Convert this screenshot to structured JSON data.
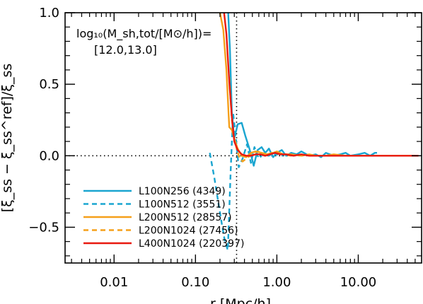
{
  "chart_data": {
    "type": "line",
    "xscale": "log",
    "xlim": [
      0.0025,
      60
    ],
    "ylim": [
      -0.75,
      1.0
    ],
    "x_ticks": [
      {
        "value": 0.01,
        "label": "0.01"
      },
      {
        "value": 0.1,
        "label": "0.10"
      },
      {
        "value": 1,
        "label": "1.00"
      },
      {
        "value": 10,
        "label": "10.00"
      }
    ],
    "y_ticks": [
      {
        "value": 1.0,
        "label": "1.0"
      },
      {
        "value": 0.5,
        "label": "0.5"
      },
      {
        "value": 0.0,
        "label": "0.0"
      },
      {
        "value": -0.5,
        "label": "−0.5"
      }
    ],
    "xlabel": "r [Mpc/h]",
    "ylabel": "[ξ_ss − ξ_ss^ref]/ξ_ss",
    "annotation": {
      "line1": "log₁₀(M_sh,tot/[M⊙/h])=",
      "line2": "[12.0,13.0]"
    },
    "reference_lines": {
      "y": 0.0,
      "x": 0.32
    },
    "legend": "bottom-left",
    "colors": {
      "blue": "#1aa5d0",
      "orange": "#f5a01a",
      "red": "#e8190f"
    },
    "series": [
      {
        "name": "L100N256 (4349)",
        "color": "#1aa5d0",
        "dash": "solid",
        "x": [
          0.25,
          0.265,
          0.28,
          0.3,
          0.33,
          0.37,
          0.41,
          0.46,
          0.52,
          0.58,
          0.65,
          0.72,
          0.8,
          0.9,
          1.0,
          1.15,
          1.3,
          1.5,
          1.75,
          2.0,
          2.5,
          3.0,
          3.5,
          4.0,
          5.0,
          6.0,
          7.0,
          8.0,
          10.0,
          12.0,
          14.0,
          16.0,
          17.0
        ],
        "y": [
          1.05,
          0.75,
          0.3,
          0.12,
          0.22,
          0.23,
          0.14,
          0.05,
          -0.07,
          0.04,
          0.06,
          0.02,
          0.05,
          -0.01,
          0.02,
          0.04,
          0.0,
          0.02,
          0.01,
          0.03,
          0.0,
          0.01,
          -0.01,
          0.02,
          0.0,
          0.01,
          0.02,
          0.0,
          0.01,
          0.02,
          0.0,
          0.02,
          0.02
        ]
      },
      {
        "name": "L100N512 (3551)",
        "color": "#1aa5d0",
        "dash": "dashed",
        "x": [
          0.15,
          0.17,
          0.19,
          0.21,
          0.23,
          0.25,
          0.27,
          0.29,
          0.31,
          0.34,
          0.38,
          0.43,
          0.48,
          0.53,
          0.6,
          0.7,
          0.8,
          0.9,
          1.0,
          1.2
        ],
        "y": [
          0.02,
          -0.15,
          -0.32,
          -0.47,
          -0.6,
          -0.66,
          -0.12,
          0.3,
          0.15,
          -0.08,
          -0.02,
          0.08,
          -0.05,
          0.06,
          -0.02,
          0.02,
          0.0,
          0.02,
          0.01,
          0.0
        ]
      },
      {
        "name": "L200N512 (28557)",
        "color": "#f5a01a",
        "dash": "solid",
        "x": [
          0.2,
          0.22,
          0.24,
          0.26,
          0.28,
          0.3,
          0.33,
          0.37,
          0.42,
          0.48,
          0.55,
          0.65,
          0.75,
          0.9,
          1.0,
          1.2,
          1.5,
          2.0,
          2.5,
          3.0,
          4.0,
          5.0,
          7.0,
          10.0,
          15.0,
          20.0,
          30.0,
          40.0,
          50.0
        ],
        "y": [
          1.0,
          0.88,
          0.6,
          0.2,
          0.18,
          0.12,
          0.05,
          0.0,
          -0.01,
          0.02,
          0.03,
          0.02,
          0.01,
          0.02,
          0.03,
          0.01,
          0.01,
          0.0,
          0.01,
          0.0,
          0.0,
          0.01,
          0.0,
          0.0,
          0.0,
          0.0,
          0.0,
          0.0,
          0.0
        ]
      },
      {
        "name": "L200N1024 (27456)",
        "color": "#f5a01a",
        "dash": "dashed",
        "x": [
          0.26,
          0.28,
          0.3,
          0.32,
          0.35,
          0.38,
          0.42,
          0.47,
          0.52,
          0.58,
          0.65,
          0.75,
          0.85,
          1.0,
          1.2,
          1.5
        ],
        "y": [
          0.55,
          0.25,
          0.12,
          0.05,
          -0.02,
          -0.04,
          -0.02,
          0.0,
          0.02,
          0.03,
          0.02,
          0.01,
          0.02,
          0.02,
          0.01,
          0.0
        ]
      },
      {
        "name": "L400N1024 (220397)",
        "color": "#e8190f",
        "dash": "solid",
        "x": [
          0.22,
          0.24,
          0.26,
          0.28,
          0.3,
          0.33,
          0.37,
          0.42,
          0.48,
          0.55,
          0.63,
          0.72,
          0.82,
          0.95,
          1.1,
          1.3,
          1.6,
          2.0,
          2.5,
          3.0,
          4.0,
          5.0,
          7.0,
          10.0,
          15.0,
          20.0,
          30.0,
          40.0,
          55.0
        ],
        "y": [
          1.05,
          0.85,
          0.52,
          0.27,
          0.1,
          0.04,
          0.01,
          0.0,
          0.0,
          0.01,
          0.01,
          0.0,
          0.01,
          0.02,
          0.01,
          0.01,
          0.0,
          0.01,
          0.0,
          0.0,
          0.0,
          0.0,
          0.0,
          0.0,
          0.0,
          0.0,
          0.0,
          0.0,
          0.0
        ]
      }
    ]
  }
}
